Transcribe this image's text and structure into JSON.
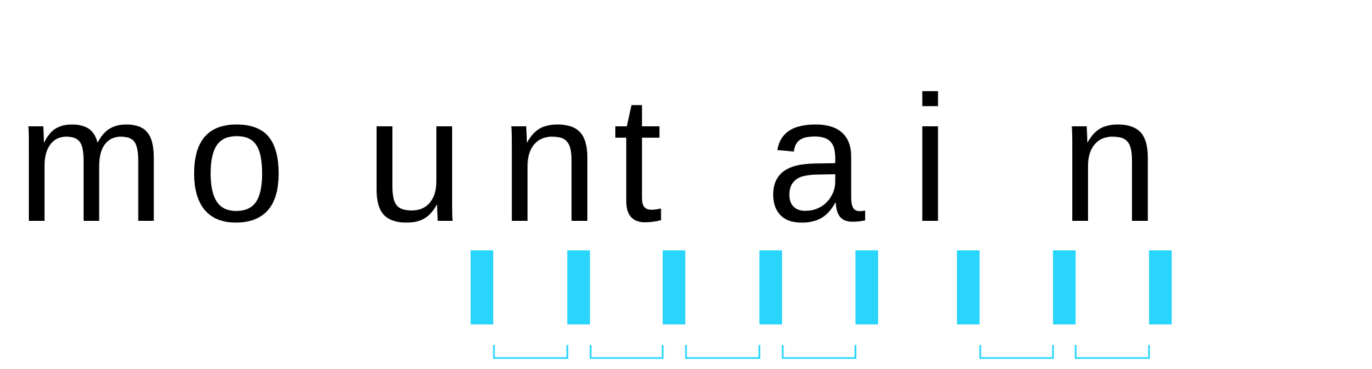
{
  "word": {
    "text": "mountain",
    "letters": [
      "m",
      "o",
      "u",
      "n",
      "t",
      "a",
      "i",
      "n"
    ]
  },
  "colors": {
    "text": "#000000",
    "stem_marker": "#29d5fb",
    "bracket": "#29d5fb",
    "background": "#ffffff"
  },
  "stem_groups": [
    {
      "letter": "u",
      "stems": 2
    },
    {
      "letter": "n",
      "stems": 2
    },
    {
      "letter": "t",
      "stems": 1
    },
    {
      "letter": "i",
      "stems": 1
    },
    {
      "letter": "n",
      "stems": 2
    }
  ],
  "spacing_brackets": [
    {
      "between": [
        "u",
        "u"
      ]
    },
    {
      "between": [
        "u",
        "n"
      ]
    },
    {
      "between": [
        "n",
        "n"
      ]
    },
    {
      "between": [
        "n",
        "t"
      ]
    },
    {
      "between": [
        "i",
        "n"
      ]
    },
    {
      "between": [
        "n",
        "n"
      ]
    }
  ]
}
